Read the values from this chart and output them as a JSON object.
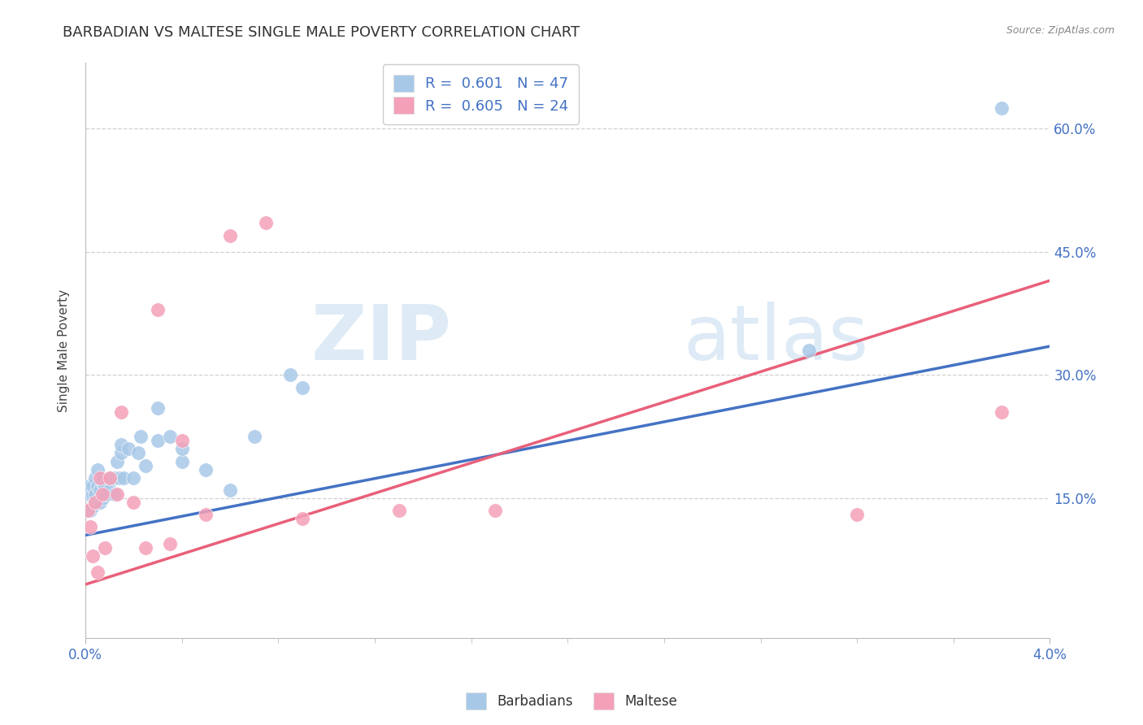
{
  "title": "BARBADIAN VS MALTESE SINGLE MALE POVERTY CORRELATION CHART",
  "source": "Source: ZipAtlas.com",
  "ylabel": "Single Male Poverty",
  "barbadian_R": 0.601,
  "barbadian_N": 47,
  "maltese_R": 0.605,
  "maltese_N": 24,
  "barbadian_color": "#a8c8e8",
  "maltese_color": "#f4a0b8",
  "barbadian_line_color": "#4472c4",
  "maltese_line_color": "#e8607a",
  "watermark_color": "#c8dff0",
  "background_color": "#ffffff",
  "grid_color": "#cccccc",
  "xlim": [
    0.0,
    0.04
  ],
  "ylim": [
    -0.02,
    0.68
  ],
  "yticks": [
    0.15,
    0.3,
    0.45,
    0.6
  ],
  "ytick_labels": [
    "15.0%",
    "30.0%",
    "45.0%",
    "60.0%"
  ],
  "barb_line_x0": 0.0,
  "barb_line_y0": 0.105,
  "barb_line_x1": 0.04,
  "barb_line_y1": 0.335,
  "malt_line_x0": 0.0,
  "malt_line_y0": 0.045,
  "malt_line_x1": 0.04,
  "malt_line_y1": 0.415,
  "barb_x": [
    0.0001,
    0.0001,
    0.0002,
    0.0002,
    0.0002,
    0.0003,
    0.0003,
    0.0003,
    0.0004,
    0.0004,
    0.0004,
    0.0005,
    0.0005,
    0.0005,
    0.0006,
    0.0006,
    0.0007,
    0.0007,
    0.0008,
    0.0008,
    0.0009,
    0.001,
    0.001,
    0.0012,
    0.0012,
    0.0013,
    0.0014,
    0.0015,
    0.0015,
    0.0016,
    0.0018,
    0.002,
    0.0022,
    0.0023,
    0.0025,
    0.003,
    0.003,
    0.0035,
    0.004,
    0.004,
    0.005,
    0.006,
    0.007,
    0.0085,
    0.009,
    0.03,
    0.038
  ],
  "barb_y": [
    0.155,
    0.165,
    0.135,
    0.155,
    0.165,
    0.14,
    0.155,
    0.165,
    0.145,
    0.155,
    0.175,
    0.145,
    0.165,
    0.185,
    0.145,
    0.16,
    0.15,
    0.17,
    0.155,
    0.165,
    0.155,
    0.16,
    0.175,
    0.155,
    0.175,
    0.195,
    0.175,
    0.205,
    0.215,
    0.175,
    0.21,
    0.175,
    0.205,
    0.225,
    0.19,
    0.22,
    0.26,
    0.225,
    0.195,
    0.21,
    0.185,
    0.16,
    0.225,
    0.3,
    0.285,
    0.33,
    0.625
  ],
  "malt_x": [
    0.0001,
    0.0002,
    0.0003,
    0.0004,
    0.0005,
    0.0006,
    0.0007,
    0.0008,
    0.001,
    0.0013,
    0.0015,
    0.002,
    0.0025,
    0.003,
    0.0035,
    0.004,
    0.005,
    0.006,
    0.0075,
    0.009,
    0.013,
    0.017,
    0.032,
    0.038
  ],
  "malt_y": [
    0.135,
    0.115,
    0.08,
    0.145,
    0.06,
    0.175,
    0.155,
    0.09,
    0.175,
    0.155,
    0.255,
    0.145,
    0.09,
    0.38,
    0.095,
    0.22,
    0.13,
    0.47,
    0.485,
    0.125,
    0.135,
    0.135,
    0.13,
    0.255
  ]
}
